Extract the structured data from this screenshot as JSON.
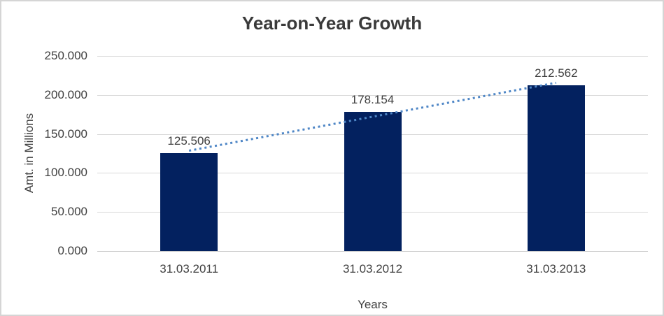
{
  "window": {
    "background": "#ffffff",
    "border_color": "#d5d5d5"
  },
  "chart_data": {
    "type": "bar",
    "title": "Year-on-Year Growth",
    "xlabel": "Years",
    "ylabel": "Amt. in Millions",
    "categories": [
      "31.03.2011",
      "31.03.2012",
      "31.03.2013"
    ],
    "values": [
      125.506,
      178.154,
      212.562
    ],
    "value_labels": [
      "125.506",
      "178.154",
      "212.562"
    ],
    "ylim": [
      0,
      250
    ],
    "yticks": [
      0,
      50,
      100,
      150,
      200,
      250
    ],
    "ytick_labels": [
      "0.000",
      "50.000",
      "100.000",
      "150.000",
      "200.000",
      "250.000"
    ],
    "grid": true,
    "legend": false,
    "trendline": {
      "type": "linear",
      "style": "dotted",
      "color": "#4e86c6"
    },
    "colors": {
      "bar": "#03215f",
      "trendline": "#4e86c6",
      "gridline": "#d9d9d9",
      "axis_line": "#c6c6c6",
      "text": "#404040",
      "title_text": "#3a3a3a"
    }
  }
}
